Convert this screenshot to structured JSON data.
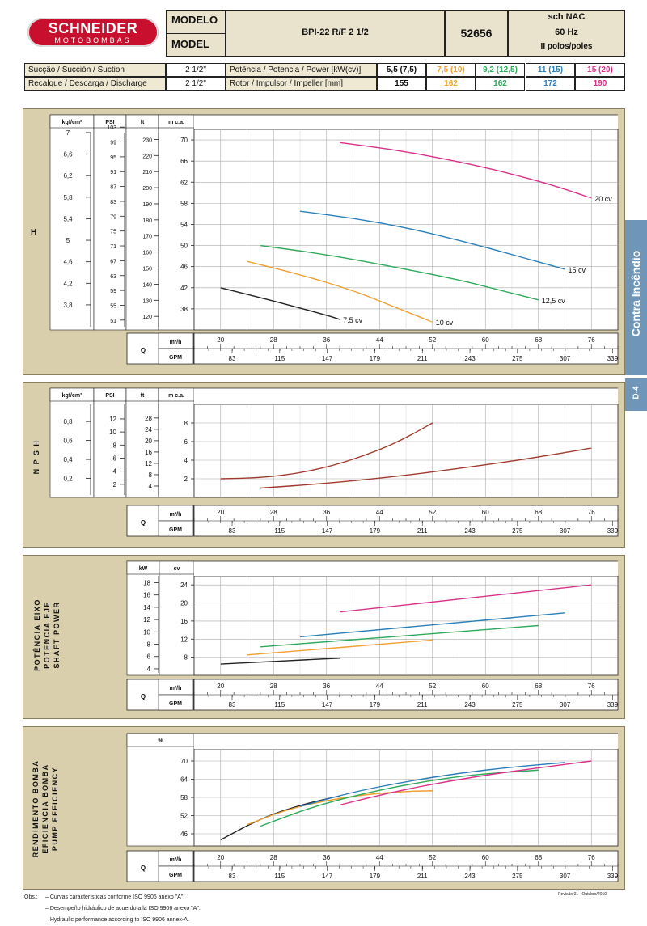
{
  "header": {
    "brand": "SCHNEIDER",
    "brand_sub": "MOTOBOMBAS",
    "modelo_label": "MODELO",
    "model_label": "MODEL",
    "model_value": "BPI-22 R/F 2 1/2",
    "code": "52656",
    "spec_line1": "sch NAC",
    "spec_line2": "60 Hz",
    "spec_line3": "II polos/poles"
  },
  "specs": {
    "suction_label": "Sucção / Succión / Suction",
    "suction_value": "2 1/2\"",
    "discharge_label": "Recalque / Descarga / Discharge",
    "discharge_value": "2 1/2\"",
    "power_label": "Potência / Potencia / Power [kW(cv)]",
    "impeller_label": "Rotor / Impulsor / Impeller [mm]",
    "power_values": [
      "5,5 (7,5)",
      "7,5 (10)",
      "9,2 (12,5)",
      "11 (15)",
      "15 (20)"
    ],
    "impeller_values": [
      "155",
      "162",
      "162",
      "172",
      "190"
    ],
    "colors": [
      "#222222",
      "#f0a030",
      "#2eaa5a",
      "#2b7fb8",
      "#d9318a"
    ]
  },
  "side_tab": {
    "text": "Contra Incêndio",
    "code": "D-4"
  },
  "labels": {
    "h_axis_title": "H",
    "npsh_axis_title": "N P S H",
    "power_axis_title": [
      "POTÊNCIA EIXO",
      "POTENCIA EJE",
      "SHAFT POWER"
    ],
    "eff_axis_title": [
      "RENDIMENTO BOMBA",
      "EFICIENCIA BOMBA",
      "PUMP EFFICIENCY"
    ],
    "q": "Q",
    "m3h": "m³/h",
    "gpm": "GPM",
    "kgf": "kgf/cm²",
    "psi": "PSI",
    "ft": "ft",
    "mca": "m c.a.",
    "kw": "kW",
    "cv": "cv",
    "pct": "%"
  },
  "footer": {
    "obs": "Obs.:",
    "notes": [
      "– Curvas características conforme ISO 9906 anexo \"A\".",
      "– Desempeño hidráulico de acuerdo a la ISO 9906 anexo \"A\".",
      "– Hydraulic performance according to ISO 9906 annex-A."
    ],
    "revision": "Revisão 01 - Outubro/2010"
  },
  "chart_data": [
    {
      "type": "line",
      "title": "H",
      "xlabel": "Q m³/h",
      "ylabel": "m c.a.",
      "xlim": [
        16,
        80
      ],
      "ylim": [
        34,
        72
      ],
      "x_ticks": [
        20,
        28,
        36,
        44,
        52,
        60,
        68,
        76
      ],
      "gpm_ticks": [
        "83",
        "115",
        "147",
        "179",
        "211",
        "243",
        "275",
        "307",
        "339"
      ],
      "y_ticks": [
        38,
        42,
        46,
        50,
        54,
        58,
        62,
        66,
        70
      ],
      "psi_ticks": [
        "51",
        "55",
        "59",
        "63",
        "67",
        "71",
        "75",
        "79",
        "83",
        "87",
        "91",
        "95",
        "99",
        "103"
      ],
      "ft_ticks": [
        "120",
        "130",
        "140",
        "150",
        "160",
        "170",
        "180",
        "190",
        "200",
        "210",
        "220",
        "230"
      ],
      "kgf_ticks": [
        "3,8",
        "4,2",
        "4,6",
        "5",
        "5,4",
        "5,8",
        "6,2",
        "6,6",
        "7"
      ],
      "series": [
        {
          "name": "7,5 cv",
          "x": [
            20,
            28,
            36,
            38
          ],
          "y": [
            42,
            39.5,
            36.8,
            36
          ]
        },
        {
          "name": "10 cv",
          "x": [
            24,
            32,
            40,
            46,
            52
          ],
          "y": [
            47,
            44.5,
            41.5,
            38.5,
            35.5
          ]
        },
        {
          "name": "12,5 cv",
          "x": [
            26,
            36,
            46,
            56,
            62,
            68
          ],
          "y": [
            50,
            48.3,
            46,
            43.5,
            41.6,
            39.7
          ]
        },
        {
          "name": "15 cv",
          "x": [
            32,
            40,
            48,
            56,
            64,
            72
          ],
          "y": [
            56.5,
            55.2,
            53.4,
            51,
            48.3,
            45.5
          ]
        },
        {
          "name": "20 cv",
          "x": [
            38,
            46,
            54,
            62,
            70,
            76
          ],
          "y": [
            69.5,
            68.2,
            66.4,
            64.2,
            61.5,
            59
          ]
        }
      ]
    },
    {
      "type": "line",
      "title": "N P S H",
      "xlabel": "Q m³/h",
      "ylabel": "m c.a.",
      "xlim": [
        16,
        80
      ],
      "ylim": [
        0,
        10
      ],
      "x_ticks": [
        20,
        28,
        36,
        44,
        52,
        60,
        68,
        76
      ],
      "y_ticks": [
        2,
        4,
        6,
        8
      ],
      "psi_ticks": [
        "2",
        "4",
        "6",
        "8",
        "10",
        "12"
      ],
      "ft_ticks": [
        "4",
        "8",
        "12",
        "16",
        "20",
        "24",
        "28"
      ],
      "kgf_ticks": [
        "0,2",
        "0,4",
        "0,6",
        "0,8"
      ],
      "series": [
        {
          "x": [
            20,
            26,
            32,
            38,
            44,
            48,
            52
          ],
          "y": [
            2,
            2.1,
            2.6,
            3.6,
            5.1,
            6.4,
            8
          ]
        },
        {
          "x": [
            26,
            36,
            46,
            56,
            66,
            76
          ],
          "y": [
            1,
            1.5,
            2.2,
            3.1,
            4.1,
            5.3
          ]
        }
      ]
    },
    {
      "type": "line",
      "title": "POTÊNCIA EIXO / POTENCIA EJE / SHAFT POWER",
      "xlabel": "Q m³/h",
      "ylabel": "cv",
      "xlim": [
        16,
        80
      ],
      "ylim": [
        4,
        26
      ],
      "x_ticks": [
        20,
        28,
        36,
        44,
        52,
        60,
        68,
        76
      ],
      "y_ticks": [
        8,
        12,
        16,
        20,
        24
      ],
      "kw_ticks": [
        "4",
        "6",
        "8",
        "10",
        "12",
        "14",
        "16",
        "18"
      ],
      "series": [
        {
          "name": "7,5 cv",
          "x": [
            20,
            38
          ],
          "y": [
            6.5,
            7.8
          ]
        },
        {
          "name": "10 cv",
          "x": [
            24,
            52
          ],
          "y": [
            8.5,
            11.8
          ]
        },
        {
          "name": "12,5 cv",
          "x": [
            26,
            68
          ],
          "y": [
            10.3,
            15
          ]
        },
        {
          "name": "15 cv",
          "x": [
            32,
            72
          ],
          "y": [
            12.5,
            17.8
          ]
        },
        {
          "name": "20 cv",
          "x": [
            38,
            76
          ],
          "y": [
            18,
            24
          ]
        }
      ]
    },
    {
      "type": "line",
      "title": "RENDIMENTO BOMBA / EFICIENCIA BOMBA / PUMP EFFICIENCY",
      "xlabel": "Q m³/h",
      "ylabel": "%",
      "xlim": [
        16,
        80
      ],
      "ylim": [
        42,
        74
      ],
      "x_ticks": [
        20,
        28,
        36,
        44,
        52,
        60,
        68,
        76
      ],
      "y_ticks": [
        46,
        52,
        58,
        64,
        70
      ],
      "series": [
        {
          "name": "7,5 cv",
          "x": [
            20,
            26,
            32,
            38
          ],
          "y": [
            44,
            51,
            55.5,
            58.5
          ]
        },
        {
          "name": "10 cv",
          "x": [
            24,
            30,
            36,
            42,
            48,
            52
          ],
          "y": [
            49,
            54,
            57,
            59,
            60,
            60.2
          ]
        },
        {
          "name": "12,5 cv",
          "x": [
            26,
            34,
            42,
            50,
            58,
            68
          ],
          "y": [
            48.5,
            55,
            59.5,
            63,
            65.5,
            67
          ]
        },
        {
          "name": "15 cv",
          "x": [
            32,
            40,
            48,
            56,
            64,
            72
          ],
          "y": [
            55,
            59.8,
            63.2,
            66,
            68,
            69.5
          ]
        },
        {
          "name": "20 cv",
          "x": [
            38,
            46,
            54,
            62,
            70,
            76
          ],
          "y": [
            55.5,
            59.8,
            63.2,
            66,
            68.3,
            70
          ]
        }
      ]
    }
  ]
}
